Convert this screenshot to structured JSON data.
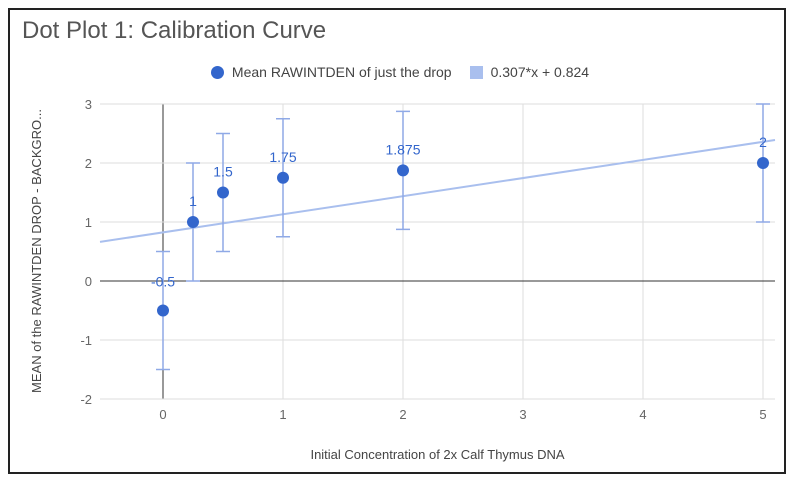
{
  "chart_data": {
    "type": "scatter",
    "title": "Dot Plot 1: Calibration Curve",
    "xlabel": "Initial Concentration of 2x Calf Thymus DNA",
    "ylabel": "MEAN of the RAWINTDEN DROP - BACKGRO...",
    "xlim": [
      -0.525,
      5.1
    ],
    "ylim": [
      -2,
      3
    ],
    "xticks": [
      0,
      1,
      2,
      3,
      4,
      5
    ],
    "yticks": [
      -2,
      -1,
      0,
      1,
      2,
      3
    ],
    "grid": true,
    "legend_position": "top",
    "series": [
      {
        "name": "Mean RAWINTDEN of just the drop",
        "color": "#3366cc",
        "x": [
          0,
          0.25,
          0.5,
          1,
          2,
          5
        ],
        "y": [
          -0.5,
          1,
          1.5,
          1.75,
          1.875,
          2
        ],
        "labels": [
          "-0.5",
          "1",
          "1.5",
          "1.75",
          "1.875",
          "2"
        ],
        "error": [
          1,
          1,
          1,
          1,
          1,
          1
        ]
      }
    ],
    "trendline": {
      "name": "0.307*x + 0.824",
      "slope": 0.307,
      "intercept": 0.824,
      "color": "#a9bfee"
    }
  }
}
